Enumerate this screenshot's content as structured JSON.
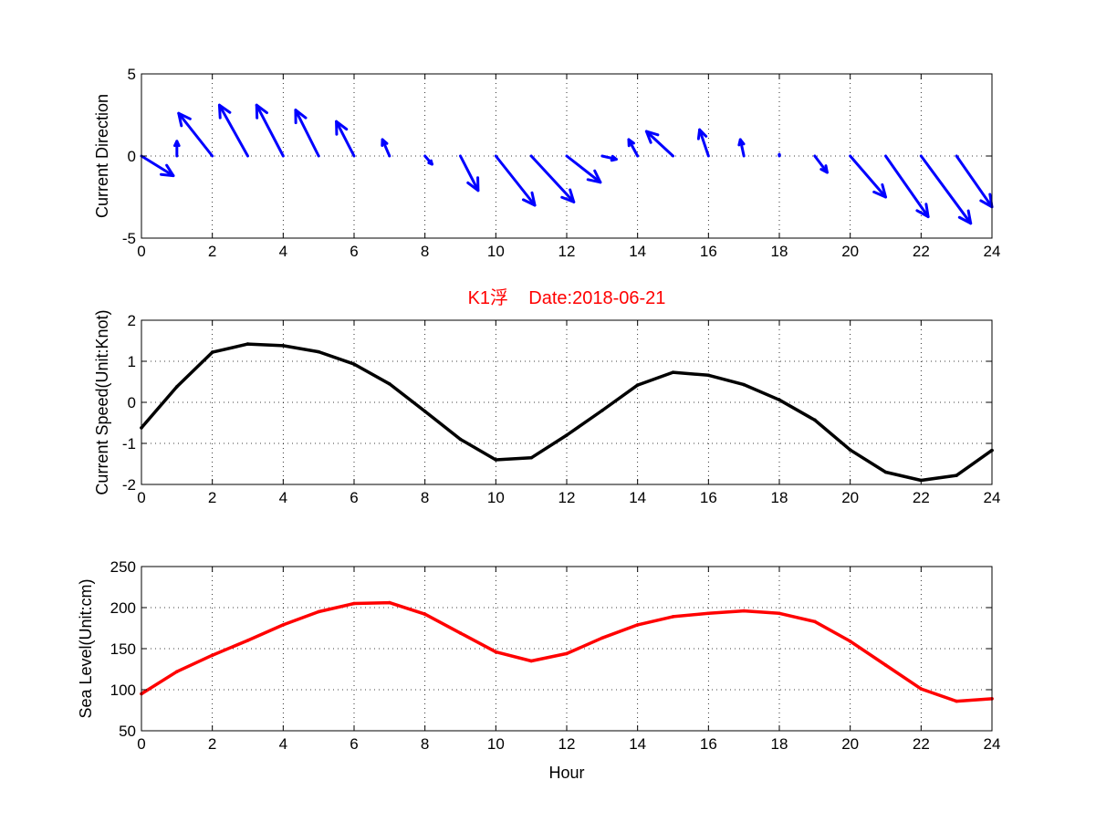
{
  "figure_title": "K1浮    Date:2018-06-21",
  "colors": {
    "direction": "#0000ff",
    "speed": "#000000",
    "sea_level": "#ff0000",
    "title": "#ff0000"
  },
  "chart_data": [
    {
      "type": "quiver",
      "ylabel": "Current Direction",
      "xlabel": "",
      "xlim": [
        0,
        24
      ],
      "ylim": [
        -5,
        5
      ],
      "xticks": [
        0,
        2,
        4,
        6,
        8,
        10,
        12,
        14,
        16,
        18,
        20,
        22,
        24
      ],
      "yticks": [
        -5,
        0,
        5
      ],
      "grid": true,
      "vectors": [
        {
          "x": 0,
          "u": 0.9,
          "v": -1.2
        },
        {
          "x": 1,
          "u": 0.0,
          "v": 0.9
        },
        {
          "x": 2,
          "u": -0.95,
          "v": 2.6
        },
        {
          "x": 3,
          "u": -0.8,
          "v": 3.1
        },
        {
          "x": 4,
          "u": -0.75,
          "v": 3.1
        },
        {
          "x": 5,
          "u": -0.65,
          "v": 2.8
        },
        {
          "x": 6,
          "u": -0.5,
          "v": 2.1
        },
        {
          "x": 7,
          "u": -0.2,
          "v": 1.0
        },
        {
          "x": 8,
          "u": 0.2,
          "v": -0.5
        },
        {
          "x": 9,
          "u": 0.5,
          "v": -2.1
        },
        {
          "x": 10,
          "u": 1.1,
          "v": -3.0
        },
        {
          "x": 11,
          "u": 1.2,
          "v": -2.8
        },
        {
          "x": 12,
          "u": 0.95,
          "v": -1.6
        },
        {
          "x": 13,
          "u": 0.4,
          "v": -0.2
        },
        {
          "x": 14,
          "u": -0.25,
          "v": 1.0
        },
        {
          "x": 15,
          "u": -0.75,
          "v": 1.5
        },
        {
          "x": 16,
          "u": -0.25,
          "v": 1.6
        },
        {
          "x": 17,
          "u": -0.1,
          "v": 1.0
        },
        {
          "x": 18,
          "u": 0.0,
          "v": 0.1
        },
        {
          "x": 19,
          "u": 0.35,
          "v": -1.0
        },
        {
          "x": 20,
          "u": 1.0,
          "v": -2.5
        },
        {
          "x": 21,
          "u": 1.2,
          "v": -3.7
        },
        {
          "x": 22,
          "u": 1.4,
          "v": -4.1
        },
        {
          "x": 23,
          "u": 1.0,
          "v": -3.1
        }
      ]
    },
    {
      "type": "line",
      "ylabel": "Current Speed(Unit:Knot)",
      "xlabel": "",
      "xlim": [
        0,
        24
      ],
      "ylim": [
        -2,
        2
      ],
      "xticks": [
        0,
        2,
        4,
        6,
        8,
        10,
        12,
        14,
        16,
        18,
        20,
        22,
        24
      ],
      "yticks": [
        -2,
        -1,
        0,
        1,
        2
      ],
      "grid": true,
      "x": [
        0,
        1,
        2,
        3,
        4,
        5,
        6,
        7,
        8,
        9,
        10,
        11,
        12,
        13,
        14,
        15,
        16,
        17,
        18,
        19,
        20,
        21,
        22,
        23,
        24
      ],
      "values": [
        -0.62,
        0.38,
        1.22,
        1.42,
        1.38,
        1.23,
        0.93,
        0.45,
        -0.22,
        -0.9,
        -1.4,
        -1.35,
        -0.8,
        -0.2,
        0.42,
        0.73,
        0.66,
        0.43,
        0.06,
        -0.43,
        -1.16,
        -1.7,
        -1.9,
        -1.78,
        -1.17
      ]
    },
    {
      "type": "line",
      "ylabel": "Sea Level(Unit:cm)",
      "xlabel": "Hour",
      "xlim": [
        0,
        24
      ],
      "ylim": [
        50,
        250
      ],
      "xticks": [
        0,
        2,
        4,
        6,
        8,
        10,
        12,
        14,
        16,
        18,
        20,
        22,
        24
      ],
      "yticks": [
        50,
        100,
        150,
        200,
        250
      ],
      "grid": true,
      "x": [
        0,
        1,
        2,
        3,
        4,
        5,
        6,
        7,
        8,
        9,
        10,
        11,
        12,
        13,
        14,
        15,
        16,
        17,
        18,
        19,
        20,
        21,
        22,
        23,
        24
      ],
      "values": [
        95,
        122,
        142,
        160,
        179,
        195,
        205,
        206,
        192,
        169,
        146,
        135,
        144,
        163,
        179,
        189,
        193,
        196,
        193,
        183,
        159,
        130,
        101,
        86,
        89
      ]
    }
  ]
}
